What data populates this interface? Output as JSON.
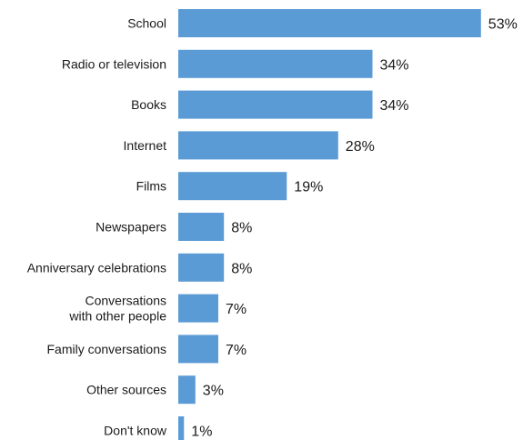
{
  "chart_data": {
    "type": "bar",
    "orientation": "horizontal",
    "categories": [
      "School",
      "Radio or television",
      "Books",
      "Internet",
      "Films",
      "Newspapers",
      "Anniversary celebrations",
      "Conversations\nwith other people",
      "Family conversations",
      "Other sources",
      "Don't know"
    ],
    "values": [
      53,
      34,
      34,
      28,
      19,
      8,
      8,
      7,
      7,
      3,
      1
    ],
    "value_labels": [
      "53%",
      "34%",
      "34%",
      "28%",
      "19%",
      "8%",
      "8%",
      "7%",
      "7%",
      "3%",
      "1%"
    ],
    "unit": "%",
    "bar_color": "#5b9bd5",
    "grid": false,
    "legend": "none"
  }
}
